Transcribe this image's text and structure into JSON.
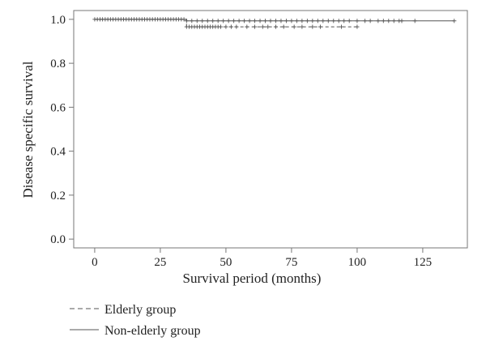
{
  "chart_data": {
    "type": "line",
    "xlabel": "Survival period (months)",
    "ylabel": "Disease specific survival",
    "xlim": [
      -8,
      142
    ],
    "ylim": [
      -0.04,
      1.04
    ],
    "x_ticks": [
      0,
      25,
      50,
      75,
      100,
      125
    ],
    "y_ticks": [
      0.0,
      0.2,
      0.4,
      0.6,
      0.8,
      1.0
    ],
    "y_tick_labels": [
      "0.0",
      "0.2",
      "0.4",
      "0.6",
      "0.8",
      "1.0"
    ],
    "grid": false,
    "legend_position": "bottom-left",
    "series": [
      {
        "name": "Elderly group",
        "line_style": "dashed",
        "steps": [
          [
            0,
            1.0
          ],
          [
            35,
            1.0
          ],
          [
            35,
            0.966
          ],
          [
            100,
            0.966
          ]
        ],
        "censored_x": [
          35,
          36,
          37,
          38,
          39,
          40,
          41,
          42,
          43,
          44,
          45,
          46,
          47,
          48,
          50,
          52,
          54,
          58,
          61,
          64,
          66,
          69,
          72,
          76,
          79,
          83,
          86,
          94,
          100
        ]
      },
      {
        "name": "Non-elderly group",
        "line_style": "solid",
        "steps": [
          [
            0,
            1.0
          ],
          [
            35,
            1.0
          ],
          [
            35,
            0.993
          ],
          [
            137,
            0.993
          ]
        ],
        "censored_x_at_1": [
          0,
          1,
          2,
          3,
          4,
          5,
          6,
          7,
          8,
          9,
          10,
          11,
          12,
          13,
          14,
          15,
          16,
          17,
          18,
          19,
          20,
          21,
          22,
          23,
          24,
          25,
          26,
          27,
          28,
          29,
          30,
          31,
          32,
          33,
          34
        ],
        "censored_x": [
          35,
          37,
          39,
          41,
          43,
          45,
          47,
          49,
          51,
          53,
          55,
          57,
          59,
          61,
          63,
          65,
          67,
          69,
          71,
          73,
          75,
          77,
          79,
          81,
          83,
          85,
          87,
          89,
          91,
          93,
          95,
          97,
          100,
          103,
          105,
          108,
          110,
          112,
          114,
          116,
          117,
          122,
          137
        ]
      }
    ]
  }
}
